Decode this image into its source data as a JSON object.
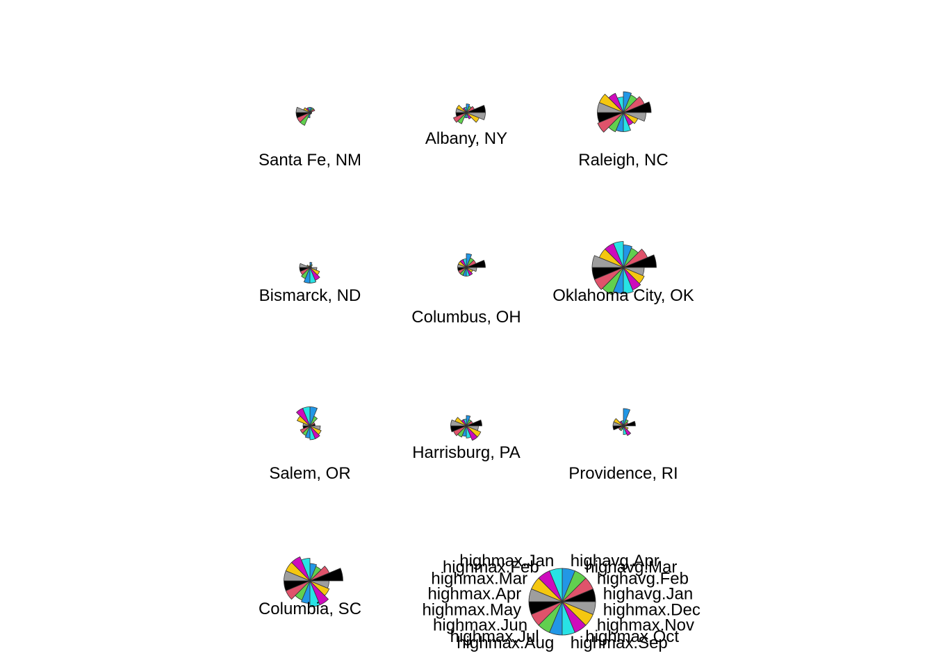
{
  "chart_data": {
    "type": "star",
    "title": "",
    "segment_colors": [
      "#000000",
      "#DF536B",
      "#61D04F",
      "#2297E6",
      "#28E2E5",
      "#CD0BBC",
      "#F5C710",
      "#9E9E9E"
    ],
    "key": {
      "labels": [
        "highavg.Jan",
        "highavg.Feb",
        "highavg.Mar",
        "highavg.Apr",
        "highmax.Jan",
        "highmax.Feb",
        "highmax.Mar",
        "highmax.Apr",
        "highmax.May",
        "highmax.Jun",
        "highmax.Jul",
        "highmax.Aug",
        "highmax.Sep",
        "highmax.Oct",
        "highmax.Nov",
        "highmax.Dec"
      ]
    },
    "series": [
      {
        "name": "Santa Fe, NM",
        "values": [
          0.05,
          0.15,
          0.15,
          0.15,
          0.15,
          0.15,
          0.2,
          0.4,
          0.4,
          0.4,
          0.4,
          0.15,
          0.05,
          0.05,
          0.05,
          0.05
        ]
      },
      {
        "name": "Albany, NY",
        "values": [
          0.55,
          0.25,
          0.2,
          0.25,
          0.15,
          0.15,
          0.3,
          0.3,
          0.3,
          0.4,
          0.35,
          0.15,
          0.15,
          0.2,
          0.4,
          0.55
        ]
      },
      {
        "name": "Raleigh, NC",
        "values": [
          0.8,
          0.65,
          0.55,
          0.6,
          0.45,
          0.6,
          0.75,
          0.75,
          0.75,
          0.8,
          0.6,
          0.55,
          0.55,
          0.4,
          0.45,
          0.65
        ]
      },
      {
        "name": "Bismarck, ND",
        "values": [
          0.05,
          0.05,
          0.1,
          0.15,
          0.05,
          0.05,
          0.1,
          0.3,
          0.3,
          0.3,
          0.35,
          0.45,
          0.45,
          0.4,
          0.3,
          0.2
        ]
      },
      {
        "name": "Columbus, OH",
        "values": [
          0.55,
          0.3,
          0.3,
          0.4,
          0.25,
          0.25,
          0.25,
          0.25,
          0.25,
          0.25,
          0.25,
          0.25,
          0.25,
          0.25,
          0.2,
          0.3
        ]
      },
      {
        "name": "Oklahoma City, OK",
        "values": [
          0.95,
          0.75,
          0.6,
          0.65,
          0.75,
          0.75,
          0.75,
          0.9,
          0.9,
          0.9,
          0.85,
          0.75,
          0.75,
          0.7,
          0.65,
          0.6
        ]
      },
      {
        "name": "Salem, OR",
        "values": [
          0.15,
          0.15,
          0.3,
          0.55,
          0.55,
          0.55,
          0.4,
          0.2,
          0.2,
          0.3,
          0.3,
          0.35,
          0.4,
          0.4,
          0.35,
          0.3
        ]
      },
      {
        "name": "Harrisburg, PA",
        "values": [
          0.45,
          0.2,
          0.2,
          0.3,
          0.2,
          0.2,
          0.35,
          0.45,
          0.45,
          0.4,
          0.35,
          0.3,
          0.35,
          0.45,
          0.45,
          0.35
        ]
      },
      {
        "name": "Providence, RI",
        "values": [
          0.35,
          0.15,
          0.2,
          0.5,
          0.15,
          0.15,
          0.3,
          0.3,
          0.3,
          0.15,
          0.15,
          0.1,
          0.25,
          0.3,
          0.15,
          0.05
        ]
      },
      {
        "name": "Columbia, SC",
        "values": [
          0.95,
          0.6,
          0.45,
          0.5,
          0.65,
          0.75,
          0.75,
          0.75,
          0.75,
          0.75,
          0.6,
          0.65,
          0.75,
          0.75,
          0.6,
          0.55
        ]
      }
    ]
  }
}
